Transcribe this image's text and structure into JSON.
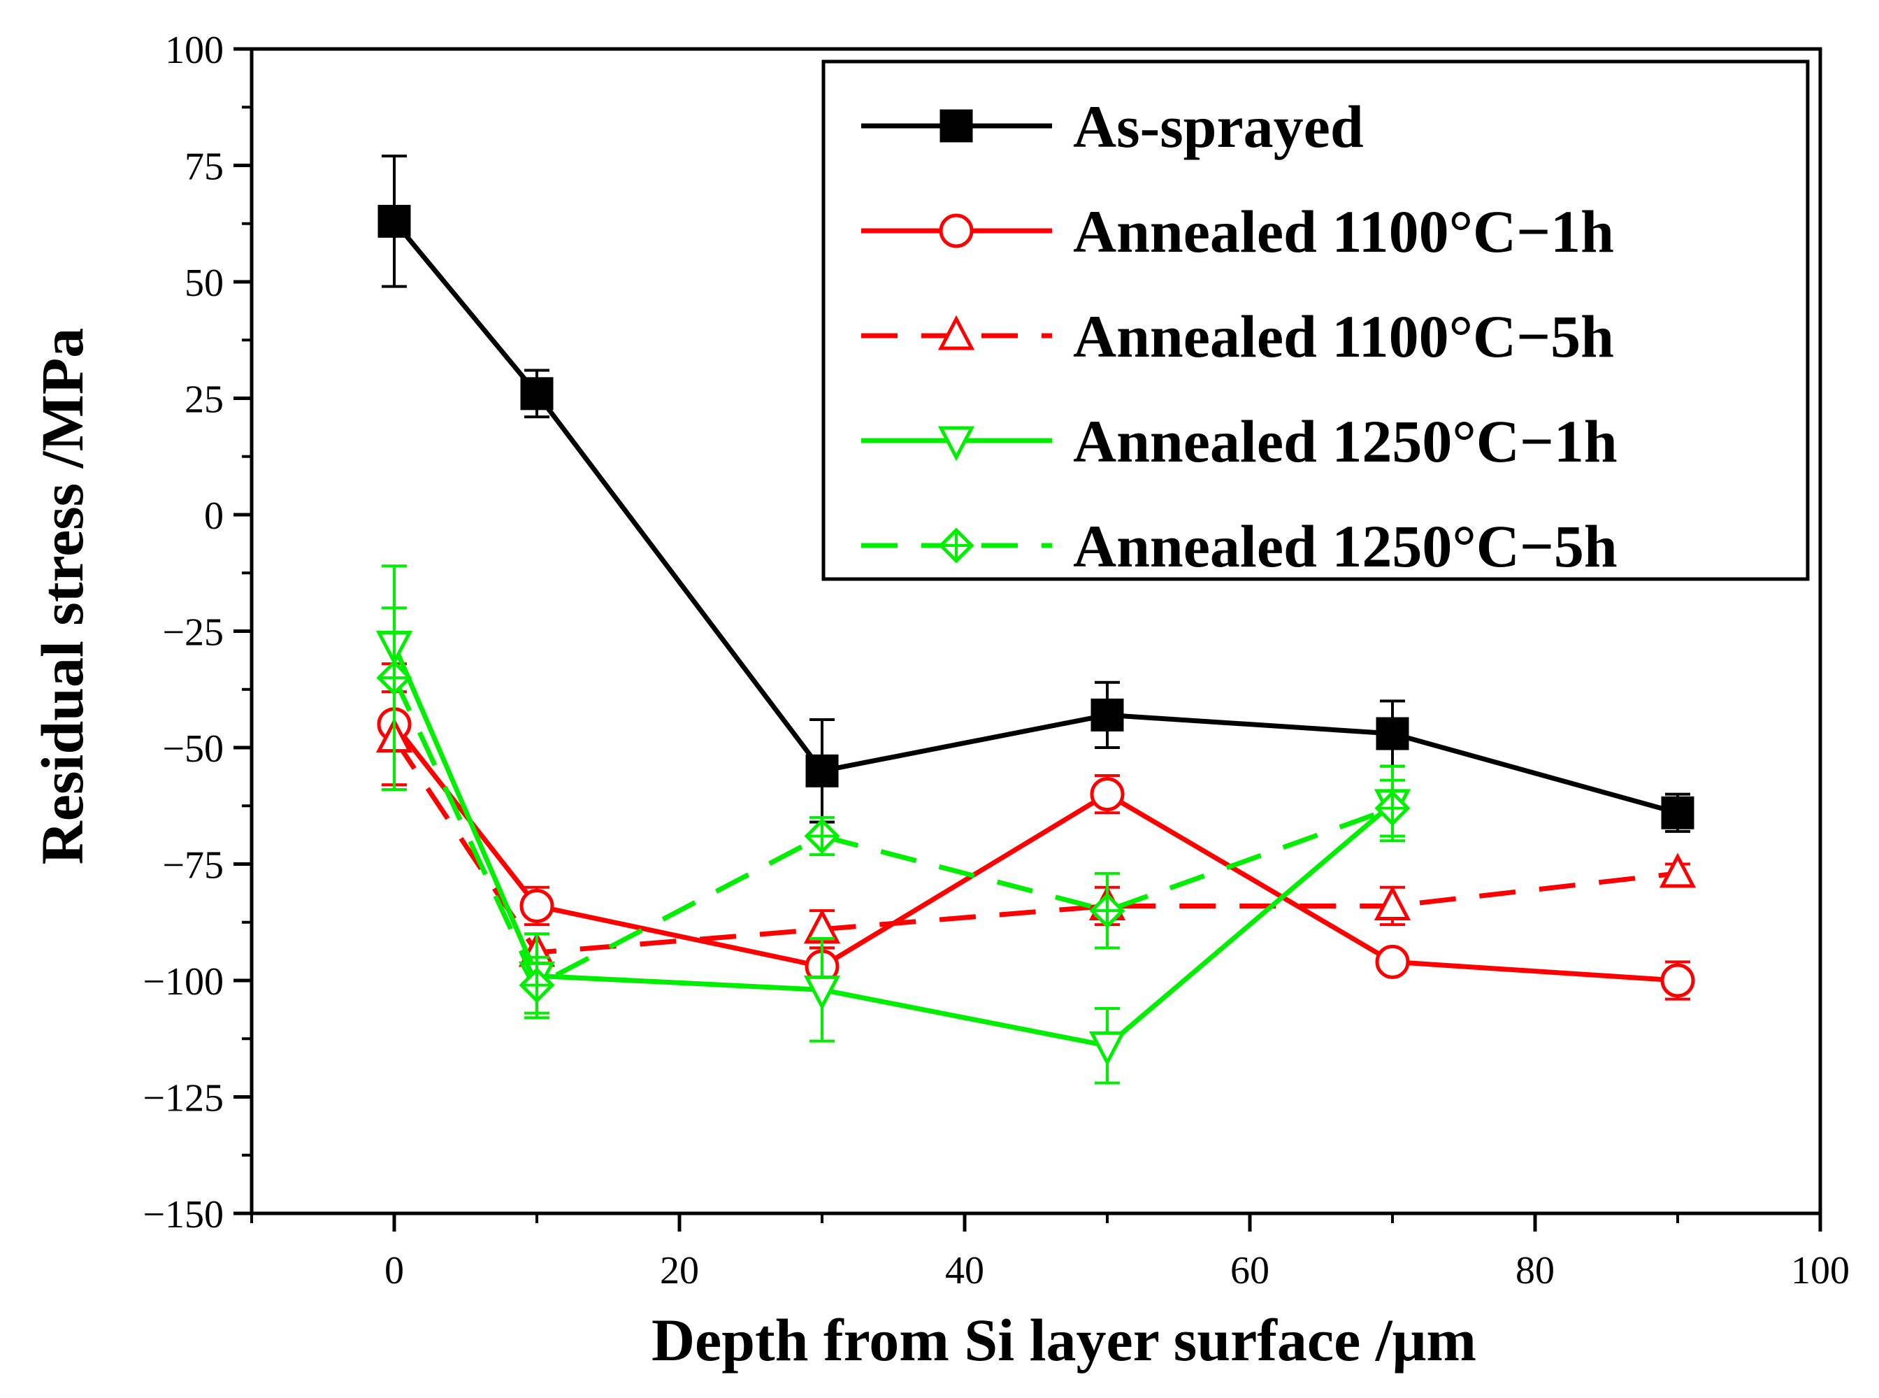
{
  "chart_data": {
    "type": "line",
    "title": "",
    "xlabel": "Depth from Si layer surface  /μm",
    "ylabel": "Residual stress /MPa",
    "xlim": [
      -10,
      100
    ],
    "ylim": [
      -150,
      100
    ],
    "xticks": [
      0,
      20,
      40,
      60,
      80,
      100
    ],
    "yticks": [
      100,
      75,
      50,
      25,
      0,
      -25,
      -50,
      -75,
      -100,
      -125,
      -150
    ],
    "xtick_labels": [
      "0",
      "20",
      "40",
      "60",
      "80",
      "100"
    ],
    "ytick_labels": [
      "100",
      "75",
      "50",
      "25",
      "0",
      "−25",
      "−50",
      "−75",
      "−100",
      "−125",
      "−150"
    ],
    "legend_position": "top-right",
    "series": [
      {
        "name": "As-sprayed",
        "color": "#000000",
        "dash": "solid",
        "marker": "square-filled",
        "x": [
          0,
          10,
          30,
          50,
          70,
          90
        ],
        "y": [
          63,
          26,
          -55,
          -43,
          -47,
          -64
        ],
        "err": [
          14,
          5,
          11,
          7,
          7,
          4
        ]
      },
      {
        "name": "Annealed 1100°C−1h",
        "color": "#ff0000",
        "dash": "solid",
        "marker": "circle-open",
        "x": [
          0,
          10,
          30,
          50,
          70,
          90
        ],
        "y": [
          -45,
          -84,
          -97,
          -60,
          -96,
          -100
        ],
        "err": [
          13,
          4,
          4,
          4,
          2,
          4
        ]
      },
      {
        "name": "Annealed 1100°C−5h",
        "color": "#ff0000",
        "dash": "dashed",
        "marker": "triangle-up-open",
        "x": [
          0,
          10,
          30,
          50,
          70,
          90
        ],
        "y": [
          -48,
          -94,
          -89,
          -84,
          -84,
          -77
        ],
        "err": [
          10,
          4,
          4,
          4,
          4,
          2
        ]
      },
      {
        "name": "Annealed 1250°C−1h",
        "color": "#00ee00",
        "dash": "solid",
        "marker": "triangle-down-open",
        "x": [
          0,
          10,
          30,
          50,
          70
        ],
        "y": [
          -28,
          -99,
          -102,
          -114,
          -62
        ],
        "err": [
          8,
          9,
          11,
          8,
          8
        ]
      },
      {
        "name": "Annealed 1250°C−5h",
        "color": "#00ee00",
        "dash": "dashed",
        "marker": "diamond-open",
        "x": [
          0,
          10,
          30,
          50,
          70
        ],
        "y": [
          -35,
          -101,
          -69,
          -85,
          -63
        ],
        "err": [
          24,
          6,
          4,
          8,
          6
        ]
      }
    ]
  }
}
